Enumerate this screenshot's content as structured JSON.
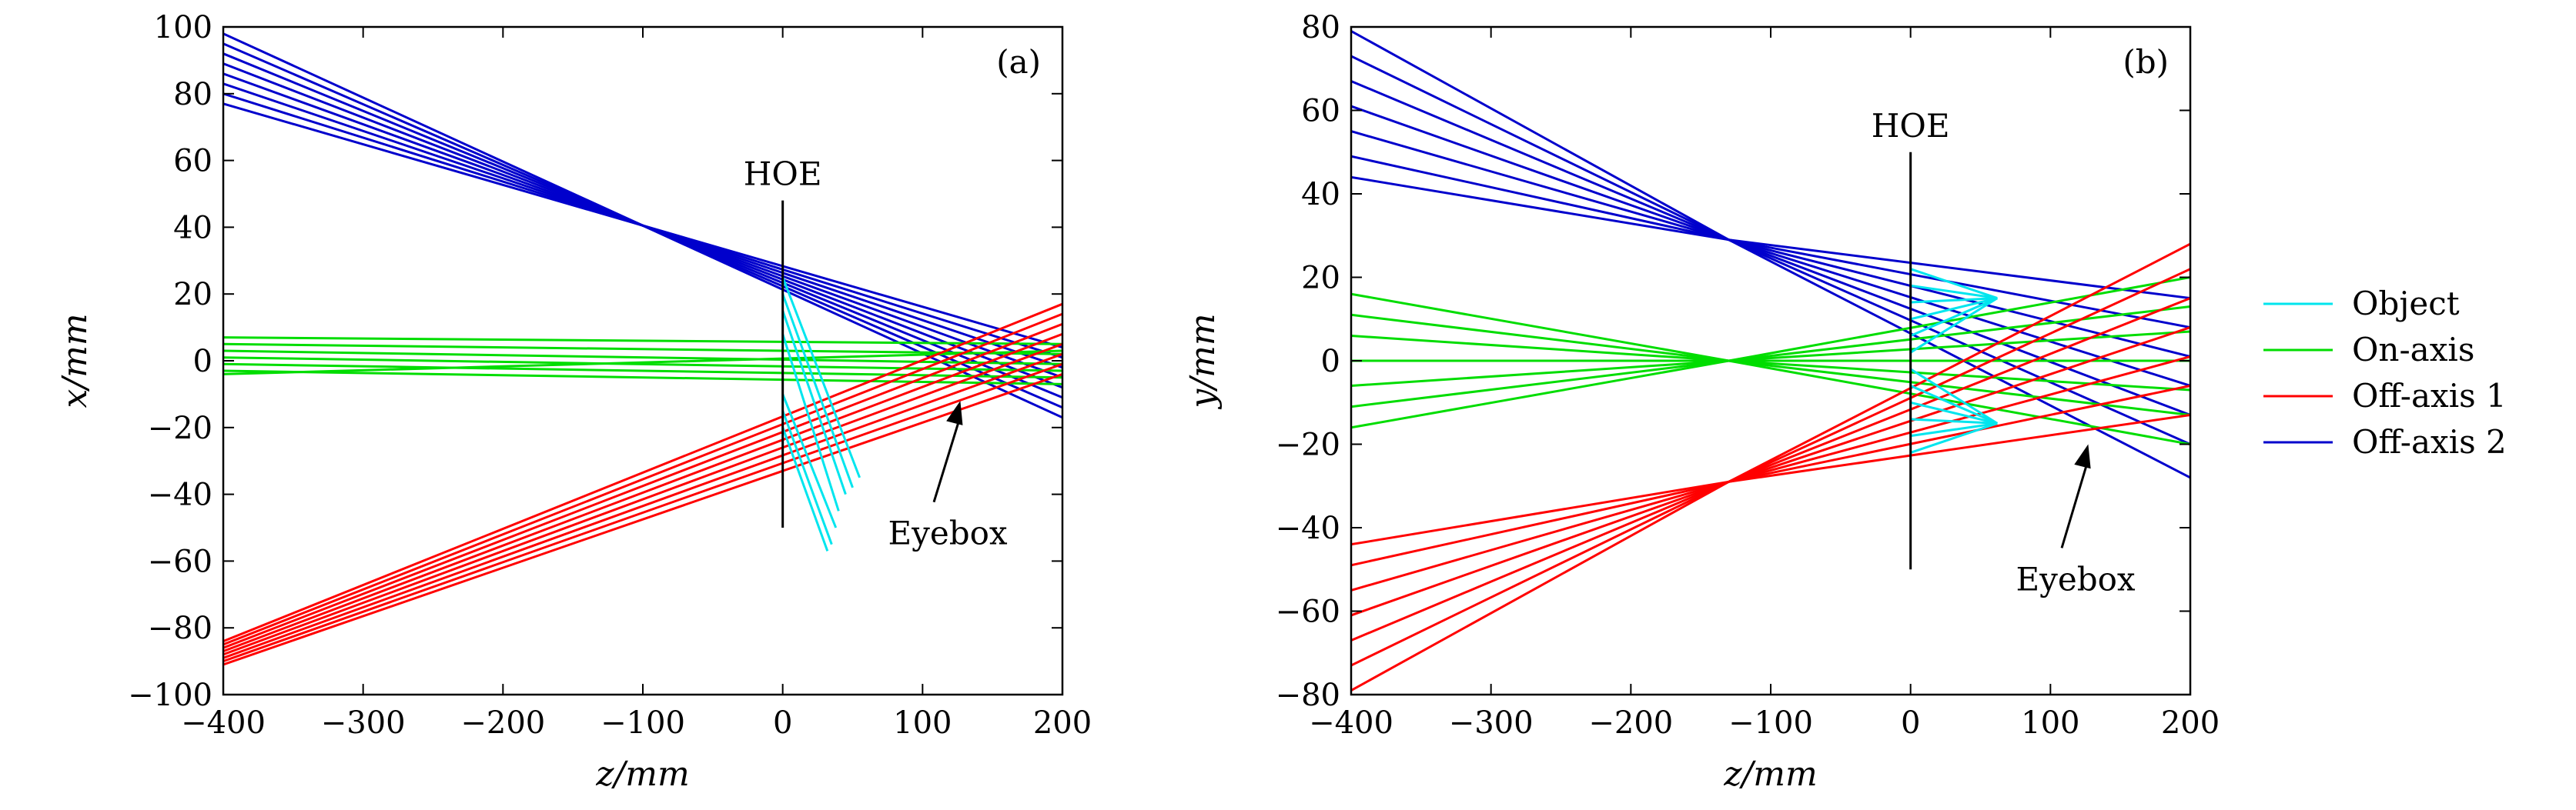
{
  "chart_data": [
    {
      "type": "line",
      "panel_label": "(a)",
      "xlabel": "z/mm",
      "ylabel": "x/mm",
      "xlim": [
        -400,
        200
      ],
      "ylim": [
        -100,
        100
      ],
      "xticks": [
        -400,
        -300,
        -200,
        -100,
        0,
        100,
        200
      ],
      "xtick_labels": [
        "−400",
        "−300",
        "−200",
        "−100",
        "0",
        "100",
        "200"
      ],
      "yticks": [
        -100,
        -80,
        -60,
        -40,
        -20,
        0,
        20,
        40,
        60,
        80,
        100
      ],
      "ytick_labels": [
        "−100",
        "−80",
        "−60",
        "−40",
        "−20",
        "0",
        "20",
        "40",
        "60",
        "80",
        "100"
      ],
      "grid": false,
      "hoe": {
        "label": "HOE",
        "x": 0,
        "y_range": [
          -50,
          48
        ]
      },
      "eyebox": {
        "label": "Eyebox",
        "point": [
          127,
          -12
        ],
        "label_at": [
          118,
          -55
        ]
      },
      "series": [
        {
          "name": "Off-axis 2",
          "color": "#0000cc",
          "segments": [
            [
              [
                -400,
                98
              ],
              [
                200,
                -17
              ]
            ],
            [
              [
                -400,
                95
              ],
              [
                200,
                -14
              ]
            ],
            [
              [
                -400,
                92
              ],
              [
                200,
                -11
              ]
            ],
            [
              [
                -400,
                89
              ],
              [
                200,
                -8
              ]
            ],
            [
              [
                -400,
                86
              ],
              [
                200,
                -5
              ]
            ],
            [
              [
                -400,
                83
              ],
              [
                200,
                -2
              ]
            ],
            [
              [
                -400,
                80
              ],
              [
                200,
                1
              ]
            ],
            [
              [
                -400,
                77
              ],
              [
                200,
                4
              ]
            ]
          ]
        },
        {
          "name": "On-axis",
          "color": "#00dd00",
          "segments": [
            [
              [
                -400,
                7
              ],
              [
                200,
                5
              ]
            ],
            [
              [
                -400,
                5
              ],
              [
                200,
                2
              ]
            ],
            [
              [
                -400,
                3
              ],
              [
                200,
                -1
              ]
            ],
            [
              [
                -400,
                1
              ],
              [
                200,
                -3
              ]
            ],
            [
              [
                -400,
                -1
              ],
              [
                200,
                -5
              ]
            ],
            [
              [
                -400,
                -3
              ],
              [
                200,
                -7
              ]
            ],
            [
              [
                -400,
                -4
              ],
              [
                200,
                3
              ]
            ]
          ]
        },
        {
          "name": "Off-axis 1",
          "color": "#ff0000",
          "segments": [
            [
              [
                -400,
                -84
              ],
              [
                200,
                17
              ]
            ],
            [
              [
                -400,
                -85
              ],
              [
                200,
                14
              ]
            ],
            [
              [
                -400,
                -86
              ],
              [
                200,
                11
              ]
            ],
            [
              [
                -400,
                -87
              ],
              [
                200,
                8
              ]
            ],
            [
              [
                -400,
                -88
              ],
              [
                200,
                5
              ]
            ],
            [
              [
                -400,
                -89
              ],
              [
                200,
                2
              ]
            ],
            [
              [
                -400,
                -90
              ],
              [
                200,
                -1
              ]
            ],
            [
              [
                -400,
                -91
              ],
              [
                200,
                -4
              ]
            ]
          ]
        },
        {
          "name": "Object",
          "color": "#00e5ee",
          "segments": [
            [
              [
                0,
                25
              ],
              [
                55,
                -35
              ]
            ],
            [
              [
                0,
                20
              ],
              [
                50,
                -38
              ]
            ],
            [
              [
                0,
                15
              ],
              [
                45,
                -40
              ]
            ],
            [
              [
                0,
                8
              ],
              [
                40,
                -45
              ]
            ],
            [
              [
                0,
                -10
              ],
              [
                38,
                -50
              ]
            ],
            [
              [
                0,
                -15
              ],
              [
                35,
                -55
              ]
            ],
            [
              [
                0,
                -20
              ],
              [
                32,
                -57
              ]
            ]
          ]
        }
      ]
    },
    {
      "type": "line",
      "panel_label": "(b)",
      "xlabel": "z/mm",
      "ylabel": "y/mm",
      "xlim": [
        -400,
        200
      ],
      "ylim": [
        -80,
        80
      ],
      "xticks": [
        -400,
        -300,
        -200,
        -100,
        0,
        100,
        200
      ],
      "xtick_labels": [
        "−400",
        "−300",
        "−200",
        "−100",
        "0",
        "100",
        "200"
      ],
      "yticks": [
        -80,
        -60,
        -40,
        -20,
        0,
        20,
        40,
        60,
        80
      ],
      "ytick_labels": [
        "−80",
        "−60",
        "−40",
        "−20",
        "0",
        "20",
        "40",
        "60",
        "80"
      ],
      "grid": false,
      "hoe": {
        "label": "HOE",
        "x": 0,
        "y_range": [
          -50,
          50
        ]
      },
      "eyebox": {
        "label": "Eyebox",
        "point": [
          127,
          -20
        ],
        "label_at": [
          118,
          -55
        ]
      },
      "series": [
        {
          "name": "Off-axis 2",
          "color": "#0000cc",
          "segments": [
            [
              [
                -400,
                79
              ],
              [
                -130,
                29
              ],
              [
                200,
                15
              ]
            ],
            [
              [
                -400,
                73
              ],
              [
                -130,
                29
              ],
              [
                200,
                8
              ]
            ],
            [
              [
                -400,
                67
              ],
              [
                -130,
                29
              ],
              [
                200,
                1
              ]
            ],
            [
              [
                -400,
                61
              ],
              [
                -130,
                29
              ],
              [
                200,
                -6
              ]
            ],
            [
              [
                -400,
                55
              ],
              [
                -130,
                29
              ],
              [
                200,
                -13
              ]
            ],
            [
              [
                -400,
                49
              ],
              [
                -130,
                29
              ],
              [
                200,
                -20
              ]
            ],
            [
              [
                -400,
                44
              ],
              [
                -130,
                29
              ],
              [
                200,
                -28
              ]
            ]
          ]
        },
        {
          "name": "On-axis",
          "color": "#00dd00",
          "segments": [
            [
              [
                -400,
                16
              ],
              [
                -130,
                0
              ],
              [
                200,
                -20
              ]
            ],
            [
              [
                -400,
                11
              ],
              [
                -130,
                0
              ],
              [
                200,
                -13
              ]
            ],
            [
              [
                -400,
                6
              ],
              [
                -130,
                0
              ],
              [
                200,
                -7
              ]
            ],
            [
              [
                -400,
                0
              ],
              [
                -130,
                0
              ],
              [
                200,
                0
              ]
            ],
            [
              [
                -400,
                -6
              ],
              [
                -130,
                0
              ],
              [
                200,
                7
              ]
            ],
            [
              [
                -400,
                -11
              ],
              [
                -130,
                0
              ],
              [
                200,
                13
              ]
            ],
            [
              [
                -400,
                -16
              ],
              [
                -130,
                0
              ],
              [
                200,
                20
              ]
            ]
          ]
        },
        {
          "name": "Off-axis 1",
          "color": "#ff0000",
          "segments": [
            [
              [
                -400,
                -44
              ],
              [
                -130,
                -29
              ],
              [
                200,
                -13
              ]
            ],
            [
              [
                -400,
                -49
              ],
              [
                -130,
                -29
              ],
              [
                200,
                -6
              ]
            ],
            [
              [
                -400,
                -55
              ],
              [
                -130,
                -29
              ],
              [
                200,
                1
              ]
            ],
            [
              [
                -400,
                -61
              ],
              [
                -130,
                -29
              ],
              [
                200,
                8
              ]
            ],
            [
              [
                -400,
                -67
              ],
              [
                -130,
                -29
              ],
              [
                200,
                15
              ]
            ],
            [
              [
                -400,
                -73
              ],
              [
                -130,
                -29
              ],
              [
                200,
                22
              ]
            ],
            [
              [
                -400,
                -79
              ],
              [
                -130,
                -29
              ],
              [
                200,
                28
              ]
            ]
          ]
        },
        {
          "name": "Object",
          "color": "#00e5ee",
          "segments": [
            [
              [
                0,
                22
              ],
              [
                62,
                15
              ]
            ],
            [
              [
                0,
                18
              ],
              [
                62,
                15
              ]
            ],
            [
              [
                0,
                14
              ],
              [
                62,
                15
              ]
            ],
            [
              [
                0,
                10
              ],
              [
                62,
                15
              ]
            ],
            [
              [
                0,
                6
              ],
              [
                62,
                15
              ]
            ],
            [
              [
                0,
                2
              ],
              [
                62,
                15
              ]
            ],
            [
              [
                0,
                -2
              ],
              [
                62,
                -15
              ]
            ],
            [
              [
                0,
                -6
              ],
              [
                62,
                -15
              ]
            ],
            [
              [
                0,
                -10
              ],
              [
                62,
                -15
              ]
            ],
            [
              [
                0,
                -14
              ],
              [
                62,
                -15
              ]
            ],
            [
              [
                0,
                -18
              ],
              [
                62,
                -15
              ]
            ],
            [
              [
                0,
                -22
              ],
              [
                62,
                -15
              ]
            ]
          ]
        }
      ]
    }
  ],
  "legend": {
    "placement": "right",
    "entries": [
      {
        "label": "Object",
        "color": "#00e5ee"
      },
      {
        "label": "On-axis",
        "color": "#00dd00"
      },
      {
        "label": "Off-axis 1",
        "color": "#ff0000"
      },
      {
        "label": "Off-axis 2",
        "color": "#0000cc"
      }
    ]
  }
}
